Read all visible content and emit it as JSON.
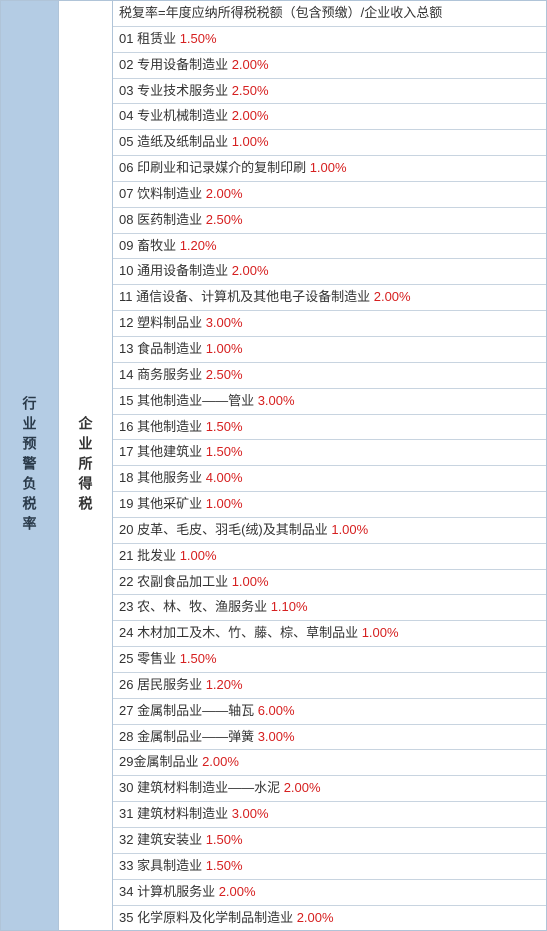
{
  "left_label": "行业预警负税率",
  "mid_label": "企业所得税",
  "header": "税复率=年度应纳所得税税额（包含预缴）/企业收入总额",
  "colors": {
    "left_bg": "#b4cce4",
    "border": "#b0c4d8",
    "row_border": "#c8d4e0",
    "text": "#333333",
    "percent": "#d62020",
    "left_text": "#2a3a4a"
  },
  "rows": [
    {
      "num": "01",
      "label": "租赁业",
      "pct": "1.50%"
    },
    {
      "num": "02",
      "label": "专用设备制造业",
      "pct": "2.00%"
    },
    {
      "num": "03",
      "label": "专业技术服务业",
      "pct": "2.50%"
    },
    {
      "num": "04",
      "label": "专业机械制造业",
      "pct": "2.00%"
    },
    {
      "num": "05",
      "label": "造纸及纸制品业",
      "pct": "1.00%"
    },
    {
      "num": "06",
      "label": "印刷业和记录媒介的复制印刷",
      "pct": "1.00%"
    },
    {
      "num": "07",
      "label": "饮料制造业",
      "pct": "2.00%"
    },
    {
      "num": "08",
      "label": "医药制造业",
      "pct": "2.50%"
    },
    {
      "num": "09",
      "label": "畜牧业",
      "pct": "1.20%"
    },
    {
      "num": "10",
      "label": "通用设备制造业",
      "pct": "2.00%"
    },
    {
      "num": "11",
      "label": "通信设备、计算机及其他电子设备制造业",
      "pct": "2.00%"
    },
    {
      "num": "12",
      "label": "塑料制品业",
      "pct": "3.00%"
    },
    {
      "num": "13",
      "label": "食品制造业",
      "pct": "1.00%"
    },
    {
      "num": "14",
      "label": "商务服务业",
      "pct": "2.50%"
    },
    {
      "num": "15",
      "label": "其他制造业——管业",
      "pct": "3.00%"
    },
    {
      "num": "16",
      "label": "其他制造业",
      "pct": "1.50%"
    },
    {
      "num": "17",
      "label": "其他建筑业",
      "pct": "1.50%"
    },
    {
      "num": "18",
      "label": "其他服务业",
      "pct": "4.00%"
    },
    {
      "num": "19",
      "label": "其他采矿业",
      "pct": "1.00%"
    },
    {
      "num": "20",
      "label": "皮革、毛皮、羽毛(绒)及其制品业",
      "pct": "1.00%"
    },
    {
      "num": "21",
      "label": "批发业",
      "pct": "1.00%"
    },
    {
      "num": "22",
      "label": "农副食品加工业",
      "pct": "1.00%"
    },
    {
      "num": "23",
      "label": "农、林、牧、渔服务业",
      "pct": "1.10%"
    },
    {
      "num": "24",
      "label": "木材加工及木、竹、藤、棕、草制品业",
      "pct": "1.00%"
    },
    {
      "num": "25",
      "label": "零售业",
      "pct": "1.50%"
    },
    {
      "num": "26",
      "label": "居民服务业",
      "pct": "1.20%"
    },
    {
      "num": "27",
      "label": "金属制品业——轴瓦",
      "pct": "6.00%"
    },
    {
      "num": "28",
      "label": "金属制品业——弹簧",
      "pct": "3.00%"
    },
    {
      "num": "29",
      "label": "金属制品业",
      "pct": "2.00%",
      "nospace": true
    },
    {
      "num": "30",
      "label": "建筑材料制造业——水泥",
      "pct": "2.00%"
    },
    {
      "num": "31",
      "label": "建筑材料制造业",
      "pct": "3.00%"
    },
    {
      "num": "32",
      "label": "建筑安装业",
      "pct": "1.50%"
    },
    {
      "num": "33",
      "label": "家具制造业",
      "pct": "1.50%"
    },
    {
      "num": "34",
      "label": "计算机服务业",
      "pct": "2.00%"
    },
    {
      "num": "35",
      "label": "化学原料及化学制品制造业",
      "pct": "2.00%"
    }
  ]
}
